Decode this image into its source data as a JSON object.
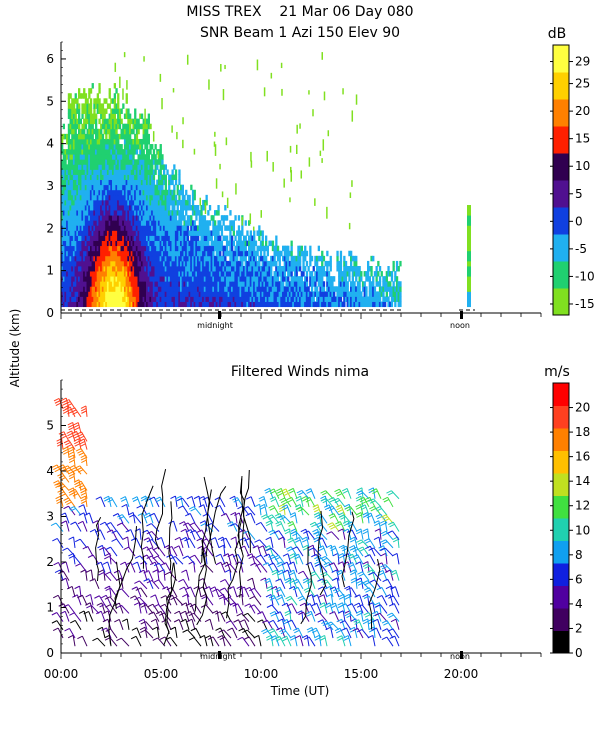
{
  "header": {
    "title_line1": "MISS TREX    21 Mar 06 Day 080",
    "title_line2": "SNR Beam 1 Azi 150 Elev 90"
  },
  "shared_axis": {
    "ylabel": "Altitude (km)",
    "xlabel": "Time (UT)",
    "xticks": [
      "00:00",
      "05:00",
      "10:00",
      "15:00",
      "20:00"
    ],
    "markers": [
      "midnight",
      "noon"
    ]
  },
  "chart_data": [
    {
      "type": "heatmap",
      "title": "SNR Beam 1 Azi 150 Elev 90",
      "x_unit": "hours UT",
      "xlim": [
        0,
        24
      ],
      "ylim": [
        0,
        6.4
      ],
      "yticks": [
        0,
        1,
        2,
        3,
        4,
        5,
        6
      ],
      "colorbar": {
        "unit": "dB",
        "range": [
          -17,
          32
        ],
        "ticks": [
          "29",
          "25",
          "20",
          "15",
          "10",
          "5",
          "0",
          "-5",
          "-10",
          "-15"
        ],
        "tick_values": [
          29,
          25,
          20,
          15,
          10,
          5,
          0,
          -5,
          -10,
          -15
        ],
        "colors": [
          "#80e020",
          "#20d070",
          "#20b0f0",
          "#1040e0",
          "#501090",
          "#300050",
          "#ff2000",
          "#ff8000",
          "#ffd000",
          "#ffff40"
        ]
      },
      "data_extent_hours": [
        0,
        17
      ],
      "isolated_column_hours": 20.3,
      "marker_hours": {
        "midnight": 7.9,
        "noon": 20.0
      }
    },
    {
      "type": "scatter",
      "title": "Filtered Winds nima",
      "x_unit": "hours UT",
      "xlim": [
        0,
        24
      ],
      "ylim": [
        0,
        6
      ],
      "yticks": [
        0,
        1,
        2,
        3,
        4,
        5
      ],
      "colorbar": {
        "unit": "m/s",
        "range": [
          0,
          22
        ],
        "ticks": [
          "20",
          "18",
          "16",
          "14",
          "12",
          "10",
          "8",
          "6",
          "4",
          "2",
          "0"
        ],
        "tick_values": [
          20,
          18,
          16,
          14,
          12,
          10,
          8,
          6,
          4,
          2,
          0
        ],
        "colors": [
          "#000000",
          "#400060",
          "#5000a0",
          "#1020e0",
          "#10a0f0",
          "#20d0b0",
          "#40e040",
          "#c0e020",
          "#ffc000",
          "#ff8000",
          "#ff4020",
          "#ff0000"
        ]
      },
      "data_extent_hours": [
        0,
        17
      ],
      "marker_hours": {
        "midnight": 7.9,
        "noon": 20.0
      }
    }
  ]
}
